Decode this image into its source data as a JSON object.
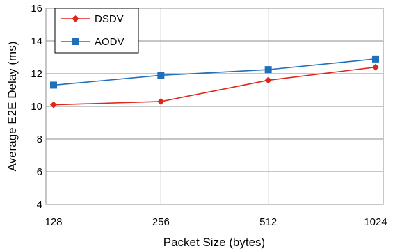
{
  "chart_data": {
    "type": "line",
    "categories": [
      "128",
      "256",
      "512",
      "1024"
    ],
    "series": [
      {
        "name": "DSDV",
        "values": [
          10.1,
          10.3,
          11.6,
          12.4
        ],
        "color": "#e0251b",
        "marker": "diamond"
      },
      {
        "name": "AODV",
        "values": [
          11.3,
          11.9,
          12.25,
          12.9
        ],
        "color": "#1f6fb9",
        "marker": "square"
      }
    ],
    "xlabel": "Packet Size (bytes)",
    "ylabel": "Average E2E Delay (ms)",
    "ylim": [
      4,
      16
    ],
    "yticks": [
      "4",
      "6",
      "8",
      "10",
      "12",
      "14",
      "16"
    ],
    "grid": true,
    "legend_position": "top-left"
  }
}
